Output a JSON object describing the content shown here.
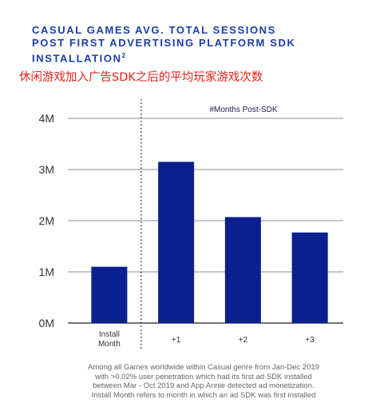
{
  "header": {
    "title_lines": [
      "CASUAL GAMES AVG. TOTAL SESSIONS",
      "POST FIRST ADVERTISING PLATFORM SDK",
      "INSTALLATION"
    ],
    "title_sup": "2",
    "subtitle_cn": "休闲游戏加入广告SDK之后的平均玩家游戏次数"
  },
  "chart_data": {
    "type": "bar",
    "annotation": "#Months Post-SDK",
    "categories": [
      "Install Month",
      "+1",
      "+2",
      "+3"
    ],
    "category_lines": [
      [
        "Install",
        "Month"
      ],
      [
        "+1"
      ],
      [
        "+2"
      ],
      [
        "+3"
      ]
    ],
    "values": [
      1.1,
      3.15,
      2.07,
      1.77
    ],
    "unit_suffix": "M",
    "ylim": [
      0,
      4
    ],
    "yticks": [
      0,
      1,
      2,
      3,
      4
    ],
    "ytick_labels": [
      "0M",
      "1M",
      "2M",
      "3M",
      "4M"
    ],
    "grid": true,
    "divider_after_index": 0,
    "colors": {
      "bar": "#0b1f8f",
      "grid": "#8c8c8c",
      "axis": "#444444"
    }
  },
  "footnote": {
    "lines": [
      "Among all Games worldwide within Casual genre from Jan-Dec 2019",
      "with >0.02% user penetration which had its first ad SDK installed",
      "between Mar - Oct 2019 and App Annie detected ad monetization.",
      "Install Month refers to month in which an ad SDK was first installed"
    ]
  }
}
